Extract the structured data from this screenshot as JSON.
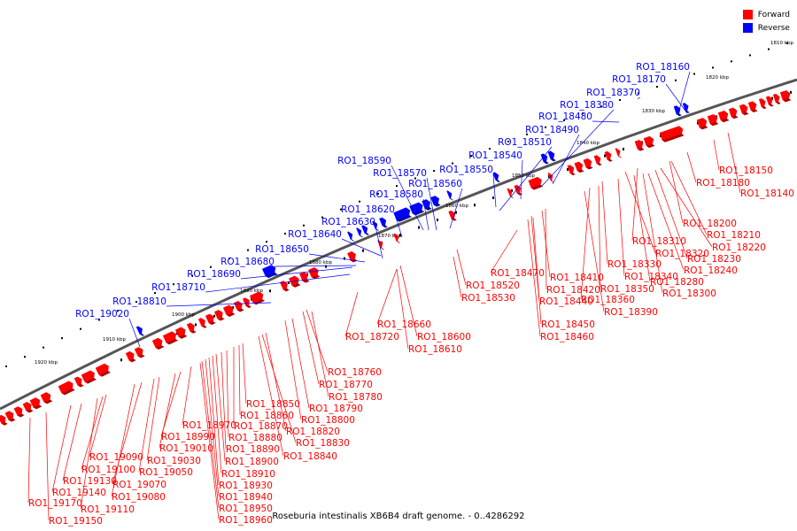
{
  "legend": {
    "forward_label": "Forward",
    "reverse_label": "Reverse",
    "forward_color": "#ff0000",
    "reverse_color": "#0000ff"
  },
  "caption": "Roseburia intestinalis XB6B4 draft genome. - 0..4286292",
  "colors": {
    "forward": "#ff0000",
    "reverse": "#0000ff",
    "backbone": "#555555",
    "tick_text": "#000000"
  },
  "ticks": [
    "1810 kbp",
    "1820 kbp",
    "1830 kbp",
    "1840 kbp",
    "1850 kbp",
    "1860 kbp",
    "1870 kbp",
    "1880 kbp",
    "1890 kbp",
    "1900 kbp",
    "1910 kbp",
    "1920 kbp"
  ],
  "reverse_labels": [
    "RO1_18160",
    "RO1_18170",
    "RO1_18370",
    "RO1_18380",
    "RO1_18480",
    "RO1_18490",
    "RO1_18510",
    "RO1_18540",
    "RO1_18550",
    "RO1_18560",
    "RO1_18570",
    "RO1_18580",
    "RO1_18590",
    "RO1_18620",
    "RO1_18630",
    "RO1_18640",
    "RO1_18650",
    "RO1_18680",
    "RO1_18690",
    "RO1_18710",
    "RO1_18810",
    "RO1_19020"
  ],
  "forward_labels": [
    "RO1_18150",
    "RO1_18180",
    "RO1_18140",
    "RO1_18200",
    "RO1_18210",
    "RO1_18310",
    "RO1_18220",
    "RO1_18320",
    "RO1_18230",
    "RO1_18330",
    "RO1_18240",
    "RO1_18280",
    "RO1_18340",
    "RO1_18350",
    "RO1_18300",
    "RO1_18360",
    "RO1_18390",
    "RO1_18410",
    "RO1_18420",
    "RO1_18440",
    "RO1_18470",
    "RO1_18450",
    "RO1_18460",
    "RO1_18520",
    "RO1_18530",
    "RO1_18660",
    "RO1_18600",
    "RO1_18610",
    "RO1_18720",
    "RO1_18760",
    "RO1_18770",
    "RO1_18780",
    "RO1_18790",
    "RO1_18800",
    "RO1_18820",
    "RO1_18830",
    "RO1_18840",
    "RO1_18850",
    "RO1_18860",
    "RO1_18870",
    "RO1_18880",
    "RO1_18890",
    "RO1_18900",
    "RO1_18910",
    "RO1_18930",
    "RO1_18940",
    "RO1_18950",
    "RO1_18960",
    "RO1_18970",
    "RO1_18990",
    "RO1_19010",
    "RO1_19030",
    "RO1_19050",
    "RO1_19070",
    "RO1_19080",
    "RO1_19090",
    "RO1_19100",
    "RO1_19110",
    "RO1_19130",
    "RO1_19140",
    "RO1_19150",
    "RO1_19170"
  ]
}
